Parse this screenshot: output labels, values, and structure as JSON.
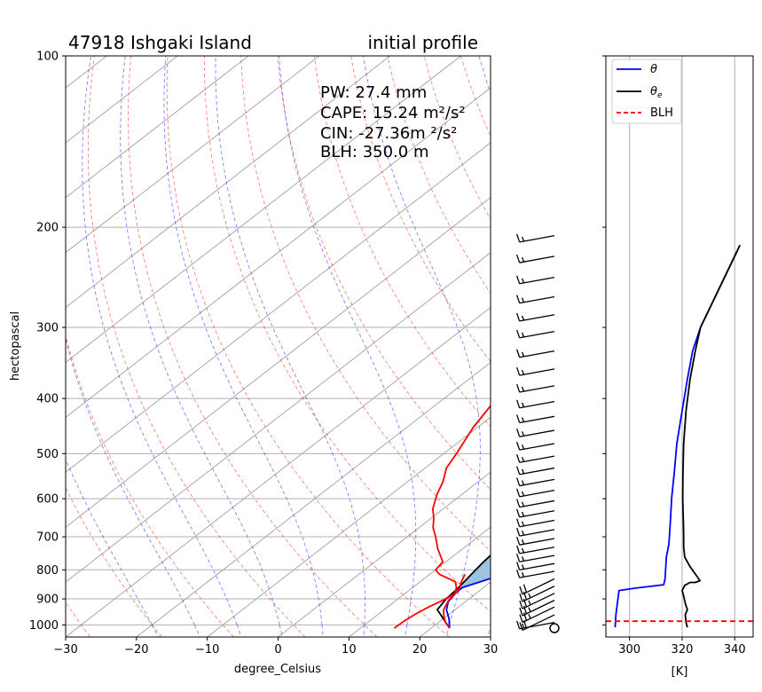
{
  "chart_data": [
    {
      "type": "skew-t",
      "title_left": "47918 Ishgaki Island",
      "title_right": "initial profile",
      "xlabel": "degree_Celsius",
      "ylabel": "hectopascal",
      "xlim": [
        -30,
        30
      ],
      "ylim": [
        1050,
        100
      ],
      "y_scale": "log",
      "grid": true,
      "x_ticks": [
        "−30",
        "−20",
        "−10",
        "0",
        "10",
        "20",
        "30"
      ],
      "y_ticks": [
        "100",
        "200",
        "300",
        "400",
        "500",
        "600",
        "700",
        "800",
        "900",
        "1000"
      ],
      "annotations": [
        "PW: 27.4 mm",
        "CAPE: 15.24 m²/s²",
        "CIN: -27.36m ²/s²",
        "BLH: 350.0 m"
      ],
      "series": [
        {
          "role": "temperature",
          "color": "#ff0000",
          "points": [
            [
              22.6,
              1013
            ],
            [
              21.0,
              990
            ],
            [
              19.6,
              965
            ],
            [
              18.4,
              940
            ],
            [
              17.4,
              905
            ],
            [
              17.0,
              880
            ],
            [
              16.2,
              860
            ],
            [
              15.0,
              840
            ],
            [
              11.4,
              815
            ],
            [
              10.0,
              800
            ],
            [
              9.6,
              775
            ],
            [
              6.5,
              735
            ],
            [
              4.0,
              700
            ],
            [
              2.0,
              675
            ],
            [
              0.4,
              650
            ],
            [
              -1.5,
              625
            ],
            [
              -3.5,
              590
            ],
            [
              -5.0,
              560
            ],
            [
              -7.0,
              530
            ],
            [
              -8.2,
              500
            ],
            [
              -10.6,
              450
            ],
            [
              -12.6,
              400
            ],
            [
              -14.4,
              360
            ],
            [
              -16.0,
              330
            ],
            [
              -17.0,
              305
            ],
            [
              -17.1,
              290
            ],
            [
              -17.2,
              260
            ],
            [
              -17.3,
              230
            ],
            [
              -17.4,
              207
            ]
          ]
        },
        {
          "role": "dewpoint",
          "color": "#ff0000",
          "points": [
            [
              14.8,
              1013
            ],
            [
              14.9,
              985
            ],
            [
              15.2,
              960
            ],
            [
              15.8,
              930
            ],
            [
              16.6,
              905
            ],
            [
              17.1,
              880
            ],
            [
              16.7,
              860
            ],
            [
              16.0,
              845
            ],
            [
              15.5,
              830
            ],
            [
              15.0,
              815
            ]
          ]
        },
        {
          "role": "parcel_path",
          "color": "#000000",
          "points": [
            [
              22.6,
              1013
            ],
            [
              17.5,
              940
            ],
            [
              16.8,
              900
            ],
            [
              16.5,
              860
            ],
            [
              15.8,
              810
            ],
            [
              15.4,
              780
            ],
            [
              15.0,
              740
            ],
            [
              14.6,
              700
            ],
            [
              14.0,
              660
            ],
            [
              13.0,
              620
            ],
            [
              11.8,
              580
            ],
            [
              10.4,
              540
            ],
            [
              8.8,
              500
            ],
            [
              6.6,
              460
            ],
            [
              4.2,
              420
            ],
            [
              1.3,
              380
            ],
            [
              -2.0,
              340
            ],
            [
              -5.5,
              300
            ],
            [
              -8.2,
              270
            ],
            [
              -10.2,
              250
            ],
            [
              -12.0,
              233
            ],
            [
              -13.8,
              220
            ],
            [
              -15.0,
              210
            ],
            [
              -16.0,
              207
            ]
          ]
        },
        {
          "role": "environment_virtual",
          "color": "#0000ff",
          "points": [
            [
              22.6,
              1013
            ],
            [
              20.8,
              975
            ],
            [
              18.8,
              940
            ],
            [
              17.6,
              910
            ],
            [
              17.1,
              880
            ],
            [
              17.0,
              860
            ],
            [
              20.0,
              820
            ],
            [
              27.0,
              800
            ],
            [
              28.6,
              785
            ],
            [
              27.0,
              760
            ],
            [
              25.4,
              735
            ],
            [
              23.6,
              700
            ],
            [
              21.2,
              660
            ],
            [
              18.8,
              620
            ],
            [
              16.6,
              585
            ],
            [
              14.6,
              550
            ],
            [
              12.8,
              520
            ],
            [
              11.2,
              495
            ],
            [
              9.6,
              470
            ],
            [
              7.0,
              430
            ],
            [
              4.6,
              390
            ],
            [
              2.7,
              360
            ],
            [
              1.0,
              330
            ],
            [
              -0.4,
              305
            ],
            [
              -0.5,
              290
            ],
            [
              -0.6,
              270
            ],
            [
              -0.7,
              250
            ],
            [
              -0.8,
              230
            ],
            [
              -0.8,
              207
            ]
          ]
        },
        {
          "role": "CAPE_area",
          "color": "#9dc3e2"
        }
      ],
      "wind_barbs": {
        "pressures": [
          207,
          225,
          245,
          265,
          285,
          305,
          330,
          355,
          380,
          405,
          430,
          455,
          480,
          505,
          530,
          555,
          580,
          605,
          630,
          655,
          680,
          705,
          730,
          755,
          780,
          805,
          830,
          855,
          880,
          905,
          930,
          960,
          990,
          1013
        ],
        "speeds_kt": [
          15,
          15,
          15,
          15,
          15,
          15,
          15,
          15,
          15,
          15,
          15,
          15,
          15,
          15,
          15,
          15,
          15,
          15,
          15,
          15,
          15,
          15,
          15,
          15,
          15,
          15,
          20,
          25,
          25,
          25,
          25,
          20,
          15,
          0
        ]
      }
    },
    {
      "type": "line",
      "xlabel": "[K]",
      "x_ticks": [
        "300",
        "320",
        "340"
      ],
      "xlim": [
        291,
        347
      ],
      "grid": true,
      "legend": [
        "θ",
        "θe",
        "BLH"
      ],
      "legend_position": "top-left",
      "series": [
        {
          "name": "theta",
          "color": "#0000ff",
          "points": [
            [
              294.5,
              1010
            ],
            [
              294.8,
              960
            ],
            [
              295.6,
              900
            ],
            [
              296.0,
              870
            ],
            [
              302,
              862
            ],
            [
              313.0,
              850
            ],
            [
              313.5,
              830
            ],
            [
              314.0,
              760
            ],
            [
              315.0,
              720
            ],
            [
              315.6,
              650
            ],
            [
              316.0,
              600
            ],
            [
              317.0,
              540
            ],
            [
              318.0,
              480
            ],
            [
              320.0,
              420
            ],
            [
              322.0,
              370
            ],
            [
              324.0,
              330
            ],
            [
              327.0,
              300
            ],
            [
              341.0,
              220
            ]
          ]
        },
        {
          "name": "theta_e",
          "color": "#000000",
          "points": [
            [
              322.0,
              1010
            ],
            [
              321.5,
              990
            ],
            [
              321.2,
              960
            ],
            [
              322.0,
              940
            ],
            [
              321.3,
              920
            ],
            [
              320.6,
              890
            ],
            [
              320.0,
              870
            ],
            [
              321.0,
              852
            ],
            [
              323.0,
              842
            ],
            [
              325.0,
              842
            ],
            [
              326.8,
              836
            ],
            [
              325.5,
              820
            ],
            [
              323.0,
              790
            ],
            [
              321.0,
              760
            ],
            [
              320.6,
              730
            ],
            [
              320.6,
              700
            ],
            [
              320.5,
              660
            ],
            [
              320.2,
              600
            ],
            [
              320.3,
              540
            ],
            [
              320.6,
              480
            ],
            [
              321.5,
              420
            ],
            [
              323.0,
              370
            ],
            [
              325.0,
              330
            ],
            [
              327.0,
              300
            ],
            [
              342.0,
              215
            ]
          ]
        },
        {
          "name": "BLH",
          "color": "#ff0000",
          "y": 985
        }
      ]
    }
  ]
}
